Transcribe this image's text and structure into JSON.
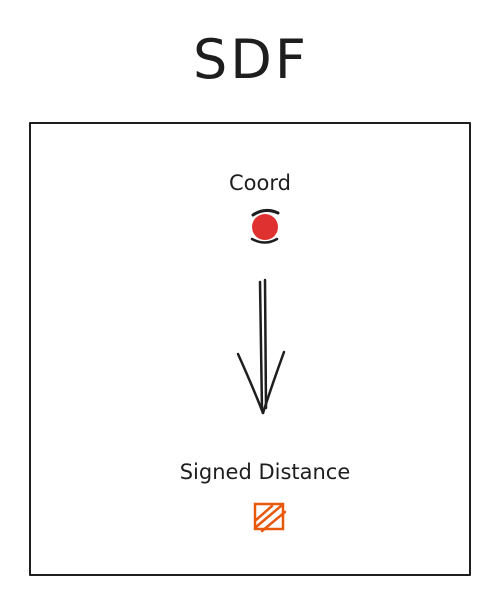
{
  "diagram": {
    "title": "SDF",
    "input_label": "Coord",
    "output_label": "Signed Distance"
  },
  "colors": {
    "ink": "#1e1e1e",
    "coord_dot": "#e03131",
    "distance_square": "#e8590c"
  },
  "icons": {
    "input": "coord-dot-icon",
    "arrow": "arrow-down-icon",
    "output": "distance-square-icon"
  }
}
